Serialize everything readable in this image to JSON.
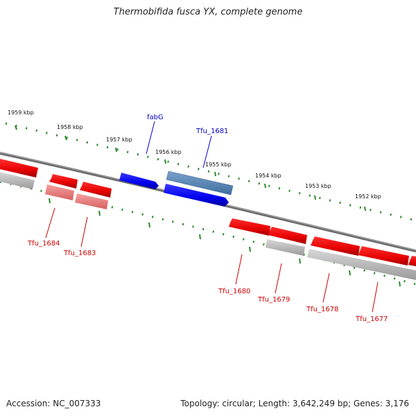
{
  "title": "Thermobifida fusca YX, complete genome",
  "footer": {
    "accession": "Accession: NC_007333",
    "summary": "Topology: circular; Length: 3,642,249 bp; Genes: 3,176"
  },
  "ruler_labels": [
    "1959 kbp",
    "1958 kbp",
    "1957 kbp",
    "1956 kbp",
    "1955 kbp",
    "1954 kbp",
    "1953 kbp",
    "1952 kbp"
  ],
  "gene_labels": {
    "fabG": "fabG",
    "tfu1681": "Tfu_1681",
    "tfu1684": "Tfu_1684",
    "tfu1683": "Tfu_1683",
    "tfu1680": "Tfu_1680",
    "tfu1679": "Tfu_1679",
    "tfu1678": "Tfu_1678",
    "tfu1677": "Tfu_1677"
  },
  "colors": {
    "forward_gene": "#0000ee",
    "forward_gene_highlight": "#4f7fb0",
    "reverse_gene": "#ee0000",
    "reverse_gene_light": "#e88080",
    "rna_gray": "#b8b8b8",
    "backbone": "#7a7a7a",
    "tick": "#2a8a2a",
    "forward_label": "#0000cc",
    "reverse_label": "#cc0000"
  }
}
